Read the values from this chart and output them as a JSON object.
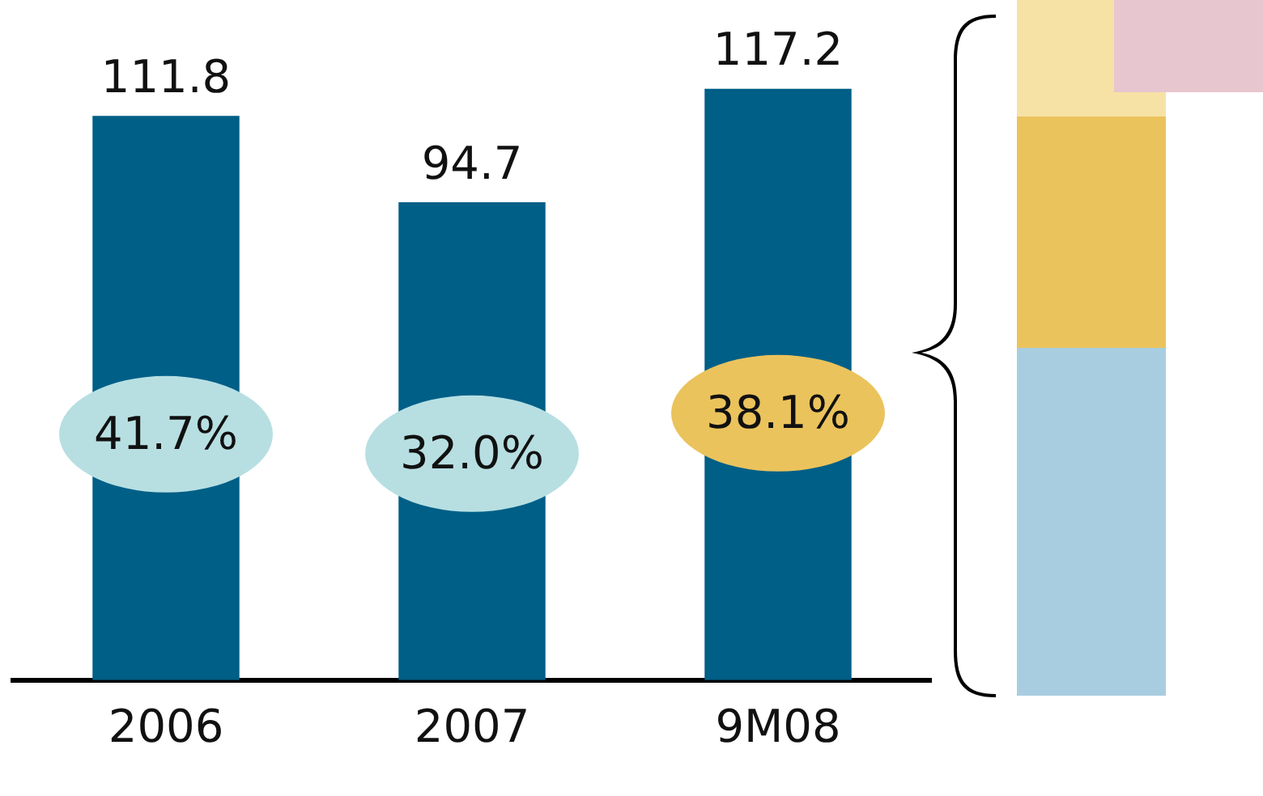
{
  "chart_data": {
    "type": "bar",
    "categories": [
      "2006",
      "2007",
      "9M08"
    ],
    "values": [
      111.8,
      94.7,
      117.2
    ],
    "color": "#005f87",
    "data_labels": true,
    "grid": false,
    "legend": false,
    "annotations": [
      "41.7%",
      "32.0%",
      "38.1%"
    ]
  }
}
